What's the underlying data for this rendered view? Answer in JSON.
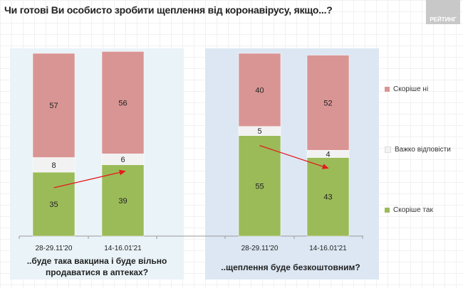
{
  "title": "Чи готові Ви особисто зробити щеплення від коронавірусу, якщо...?",
  "logo_text": "РЕЙТИНГ",
  "chart_data": {
    "type": "bar",
    "stacked": true,
    "ylim": [
      0,
      100
    ],
    "groups": [
      {
        "label_line1": "..буде така вакцина і буде вільно",
        "label_line2": "продаватися в аптеках?",
        "categories": [
          "28-29.11'20",
          "14-16.01'21"
        ]
      },
      {
        "label_line1": "..щеплення буде безкоштовним?",
        "label_line2": "",
        "categories": [
          "28-29.11'20",
          "14-16.01'21"
        ]
      }
    ],
    "series": [
      {
        "name": "Скоріше  так",
        "color": "#9bbb59",
        "values": [
          35,
          39,
          55,
          43
        ]
      },
      {
        "name": "Важко відповісти",
        "color": "#f2f2f2",
        "values": [
          8,
          6,
          5,
          4
        ]
      },
      {
        "name": "Скоріше  ні",
        "color": "#d99594",
        "values": [
          57,
          56,
          40,
          52
        ]
      }
    ],
    "arrow_color": "#e31a1c",
    "legend_placement": "right"
  }
}
